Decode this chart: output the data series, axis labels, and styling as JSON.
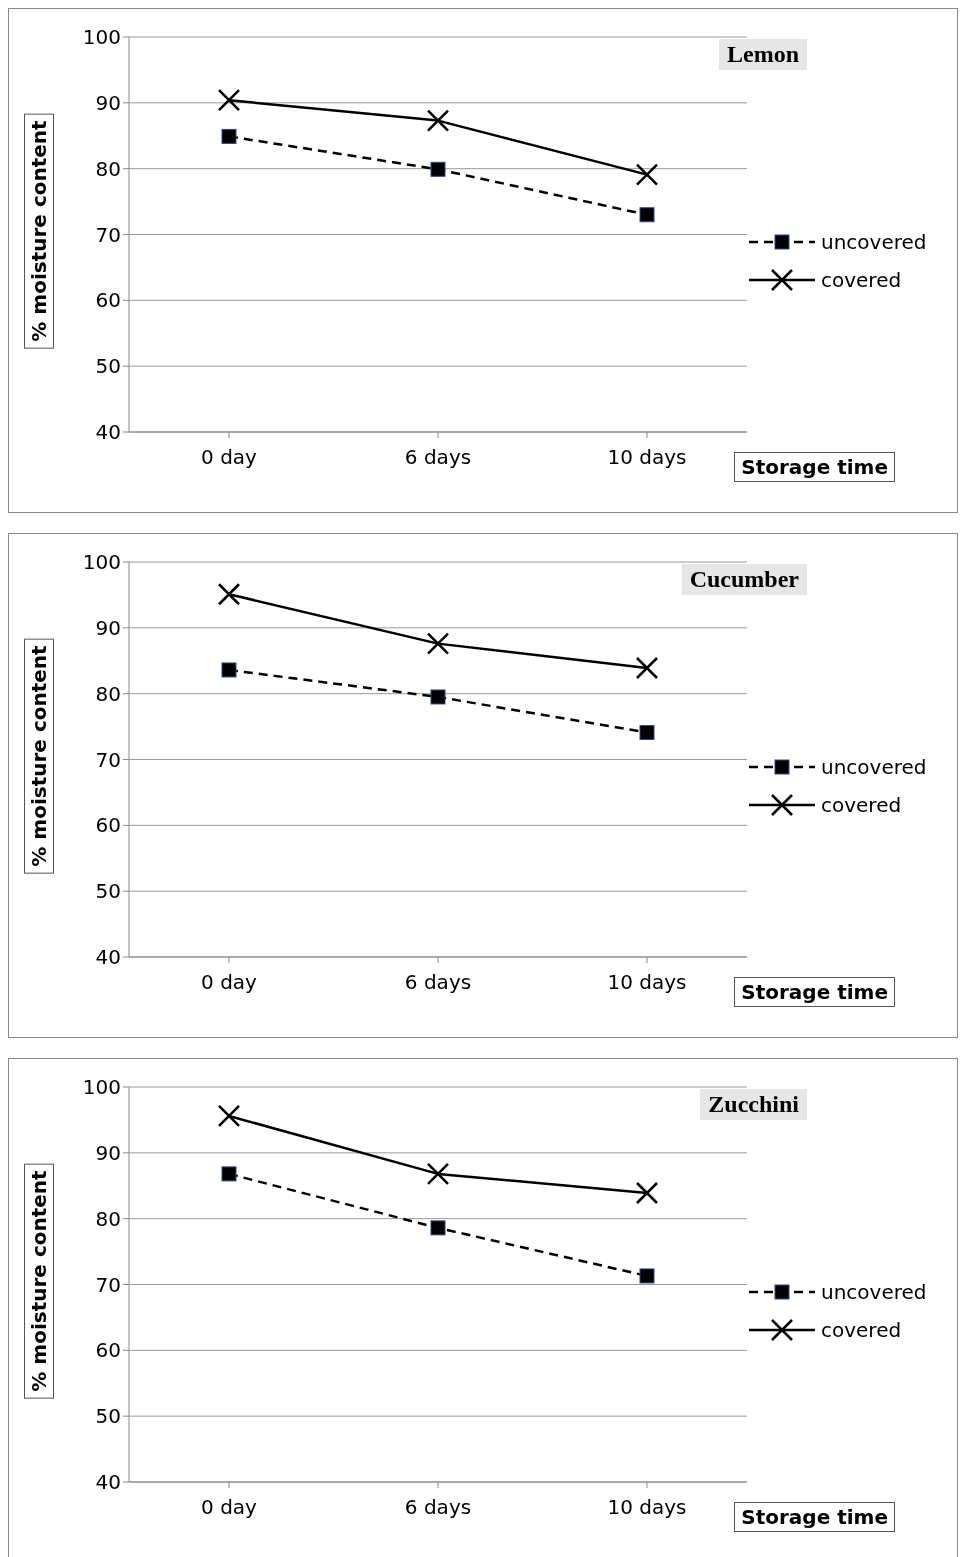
{
  "chart_data": [
    {
      "type": "line",
      "title": "Lemon",
      "xlabel": "Storage time",
      "ylabel": "% moisture content",
      "categories": [
        "0 day",
        "6 days",
        "10 days"
      ],
      "ylim": [
        40,
        100
      ],
      "yticks": [
        40,
        50,
        60,
        70,
        80,
        90,
        100
      ],
      "grid": "y",
      "legend": "right",
      "series": [
        {
          "name": "uncovered",
          "color": "#000000",
          "marker": "square",
          "line_style": "dashed",
          "values": [
            84.9,
            79.9,
            73
          ]
        },
        {
          "name": "covered",
          "color": "#000000",
          "marker": "cross",
          "line_style": "solid",
          "values": [
            90.4,
            87.3,
            79.1
          ]
        }
      ]
    },
    {
      "type": "line",
      "title": "Cucumber",
      "xlabel": "Storage time",
      "ylabel": "% moisture content",
      "categories": [
        "0 day",
        "6 days",
        "10 days"
      ],
      "ylim": [
        40,
        100
      ],
      "yticks": [
        40,
        50,
        60,
        70,
        80,
        90,
        100
      ],
      "grid": "y",
      "legend": "right",
      "series": [
        {
          "name": "uncovered",
          "color": "#000000",
          "marker": "square",
          "line_style": "dashed",
          "values": [
            83.6,
            79.5,
            74.1
          ]
        },
        {
          "name": "covered",
          "color": "#000000",
          "marker": "cross",
          "line_style": "solid",
          "values": [
            95.1,
            87.6,
            83.9
          ]
        }
      ]
    },
    {
      "type": "line",
      "title": "Zucchini",
      "xlabel": "Storage time",
      "ylabel": "% moisture content",
      "categories": [
        "0 day",
        "6 days",
        "10 days"
      ],
      "ylim": [
        40,
        100
      ],
      "yticks": [
        40,
        50,
        60,
        70,
        80,
        90,
        100
      ],
      "grid": "y",
      "legend": "right",
      "series": [
        {
          "name": "uncovered",
          "color": "#000000",
          "marker": "square",
          "line_style": "dashed",
          "values": [
            86.8,
            78.6,
            71.3
          ]
        },
        {
          "name": "covered",
          "color": "#000000",
          "marker": "cross",
          "line_style": "solid",
          "values": [
            95.6,
            86.8,
            83.9
          ]
        }
      ]
    }
  ]
}
